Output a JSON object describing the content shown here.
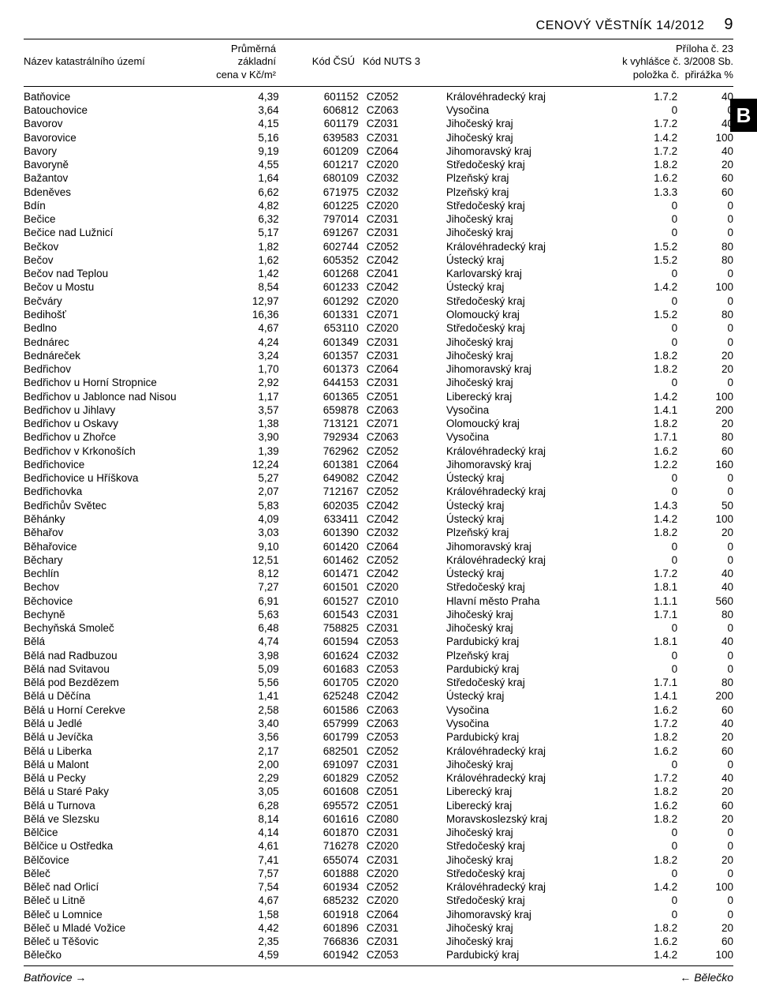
{
  "running_head": {
    "title": "CENOVÝ VĚSTNÍK 14/2012",
    "page_num": "9"
  },
  "side_tab": "B",
  "header": {
    "col1": "Název katastrálního území",
    "col2_l1": "Průměrná",
    "col2_l2": "základní",
    "col2_l3": "cena v Kč/m²",
    "col3": "Kód ČSÚ",
    "col4": "Kód NUTS 3",
    "right_l1": "Příloha č. 23",
    "right_l2": "k vyhlášce č. 3/2008 Sb.",
    "right_l3a": "položka č.",
    "right_l3b": "přirážka %"
  },
  "footer": {
    "left": "Batňovice",
    "right": "Bělečko"
  },
  "rows": [
    {
      "n": "Batňovice",
      "p": "4,39",
      "c": "601152",
      "u": "CZ052",
      "r": "Královéhradecký kraj",
      "l": "1.7.2",
      "s": "40"
    },
    {
      "n": "Batouchovice",
      "p": "3,64",
      "c": "606812",
      "u": "CZ063",
      "r": "Vysočina",
      "l": "0",
      "s": "0"
    },
    {
      "n": "Bavorov",
      "p": "4,15",
      "c": "601179",
      "u": "CZ031",
      "r": "Jihočeský kraj",
      "l": "1.7.2",
      "s": "40"
    },
    {
      "n": "Bavorovice",
      "p": "5,16",
      "c": "639583",
      "u": "CZ031",
      "r": "Jihočeský kraj",
      "l": "1.4.2",
      "s": "100"
    },
    {
      "n": "Bavory",
      "p": "9,19",
      "c": "601209",
      "u": "CZ064",
      "r": "Jihomoravský kraj",
      "l": "1.7.2",
      "s": "40"
    },
    {
      "n": "Bavoryně",
      "p": "4,55",
      "c": "601217",
      "u": "CZ020",
      "r": "Středočeský kraj",
      "l": "1.8.2",
      "s": "20"
    },
    {
      "n": "Bažantov",
      "p": "1,64",
      "c": "680109",
      "u": "CZ032",
      "r": "Plzeňský kraj",
      "l": "1.6.2",
      "s": "60"
    },
    {
      "n": "Bdeněves",
      "p": "6,62",
      "c": "671975",
      "u": "CZ032",
      "r": "Plzeňský kraj",
      "l": "1.3.3",
      "s": "60"
    },
    {
      "n": "Bdín",
      "p": "4,82",
      "c": "601225",
      "u": "CZ020",
      "r": "Středočeský kraj",
      "l": "0",
      "s": "0"
    },
    {
      "n": "Bečice",
      "p": "6,32",
      "c": "797014",
      "u": "CZ031",
      "r": "Jihočeský kraj",
      "l": "0",
      "s": "0"
    },
    {
      "n": "Bečice nad Lužnicí",
      "p": "5,17",
      "c": "691267",
      "u": "CZ031",
      "r": "Jihočeský kraj",
      "l": "0",
      "s": "0"
    },
    {
      "n": "Bečkov",
      "p": "1,82",
      "c": "602744",
      "u": "CZ052",
      "r": "Královéhradecký kraj",
      "l": "1.5.2",
      "s": "80"
    },
    {
      "n": "Bečov",
      "p": "1,62",
      "c": "605352",
      "u": "CZ042",
      "r": "Ústecký kraj",
      "l": "1.5.2",
      "s": "80"
    },
    {
      "n": "Bečov nad Teplou",
      "p": "1,42",
      "c": "601268",
      "u": "CZ041",
      "r": "Karlovarský kraj",
      "l": "0",
      "s": "0"
    },
    {
      "n": "Bečov u Mostu",
      "p": "8,54",
      "c": "601233",
      "u": "CZ042",
      "r": "Ústecký kraj",
      "l": "1.4.2",
      "s": "100"
    },
    {
      "n": "Bečváry",
      "p": "12,97",
      "c": "601292",
      "u": "CZ020",
      "r": "Středočeský kraj",
      "l": "0",
      "s": "0"
    },
    {
      "n": "Bedihošť",
      "p": "16,36",
      "c": "601331",
      "u": "CZ071",
      "r": "Olomoucký kraj",
      "l": "1.5.2",
      "s": "80"
    },
    {
      "n": "Bedlno",
      "p": "4,67",
      "c": "653110",
      "u": "CZ020",
      "r": "Středočeský kraj",
      "l": "0",
      "s": "0"
    },
    {
      "n": "Bednárec",
      "p": "4,24",
      "c": "601349",
      "u": "CZ031",
      "r": "Jihočeský kraj",
      "l": "0",
      "s": "0"
    },
    {
      "n": "Bednáreček",
      "p": "3,24",
      "c": "601357",
      "u": "CZ031",
      "r": "Jihočeský kraj",
      "l": "1.8.2",
      "s": "20"
    },
    {
      "n": "Bedřichov",
      "p": "1,70",
      "c": "601373",
      "u": "CZ064",
      "r": "Jihomoravský kraj",
      "l": "1.8.2",
      "s": "20"
    },
    {
      "n": "Bedřichov u Horní Stropnice",
      "p": "2,92",
      "c": "644153",
      "u": "CZ031",
      "r": "Jihočeský kraj",
      "l": "0",
      "s": "0"
    },
    {
      "n": "Bedřichov u Jablonce nad Nisou",
      "p": "1,17",
      "c": "601365",
      "u": "CZ051",
      "r": "Liberecký kraj",
      "l": "1.4.2",
      "s": "100"
    },
    {
      "n": "Bedřichov u Jihlavy",
      "p": "3,57",
      "c": "659878",
      "u": "CZ063",
      "r": "Vysočina",
      "l": "1.4.1",
      "s": "200"
    },
    {
      "n": "Bedřichov u Oskavy",
      "p": "1,38",
      "c": "713121",
      "u": "CZ071",
      "r": "Olomoucký kraj",
      "l": "1.8.2",
      "s": "20"
    },
    {
      "n": "Bedřichov u Zhořce",
      "p": "3,90",
      "c": "792934",
      "u": "CZ063",
      "r": "Vysočina",
      "l": "1.7.1",
      "s": "80"
    },
    {
      "n": "Bedřichov v Krkonoších",
      "p": "1,39",
      "c": "762962",
      "u": "CZ052",
      "r": "Královéhradecký kraj",
      "l": "1.6.2",
      "s": "60"
    },
    {
      "n": "Bedřichovice",
      "p": "12,24",
      "c": "601381",
      "u": "CZ064",
      "r": "Jihomoravský kraj",
      "l": "1.2.2",
      "s": "160"
    },
    {
      "n": "Bedřichovice u Hříškova",
      "p": "5,27",
      "c": "649082",
      "u": "CZ042",
      "r": "Ústecký kraj",
      "l": "0",
      "s": "0"
    },
    {
      "n": "Bedřichovka",
      "p": "2,07",
      "c": "712167",
      "u": "CZ052",
      "r": "Královéhradecký kraj",
      "l": "0",
      "s": "0"
    },
    {
      "n": "Bedřichův Světec",
      "p": "5,83",
      "c": "602035",
      "u": "CZ042",
      "r": "Ústecký kraj",
      "l": "1.4.3",
      "s": "50"
    },
    {
      "n": "Běhánky",
      "p": "4,09",
      "c": "633411",
      "u": "CZ042",
      "r": "Ústecký kraj",
      "l": "1.4.2",
      "s": "100"
    },
    {
      "n": "Běhařov",
      "p": "3,03",
      "c": "601390",
      "u": "CZ032",
      "r": "Plzeňský kraj",
      "l": "1.8.2",
      "s": "20"
    },
    {
      "n": "Běhařovice",
      "p": "9,10",
      "c": "601420",
      "u": "CZ064",
      "r": "Jihomoravský kraj",
      "l": "0",
      "s": "0"
    },
    {
      "n": "Běchary",
      "p": "12,51",
      "c": "601462",
      "u": "CZ052",
      "r": "Královéhradecký kraj",
      "l": "0",
      "s": "0"
    },
    {
      "n": "Bechlín",
      "p": "8,12",
      "c": "601471",
      "u": "CZ042",
      "r": "Ústecký kraj",
      "l": "1.7.2",
      "s": "40"
    },
    {
      "n": "Bechov",
      "p": "7,27",
      "c": "601501",
      "u": "CZ020",
      "r": "Středočeský kraj",
      "l": "1.8.1",
      "s": "40"
    },
    {
      "n": "Běchovice",
      "p": "6,91",
      "c": "601527",
      "u": "CZ010",
      "r": "Hlavní město Praha",
      "l": "1.1.1",
      "s": "560"
    },
    {
      "n": "Bechyně",
      "p": "5,63",
      "c": "601543",
      "u": "CZ031",
      "r": "Jihočeský kraj",
      "l": "1.7.1",
      "s": "80"
    },
    {
      "n": "Bechyňská Smoleč",
      "p": "6,48",
      "c": "758825",
      "u": "CZ031",
      "r": "Jihočeský kraj",
      "l": "0",
      "s": "0"
    },
    {
      "n": "Bělá",
      "p": "4,74",
      "c": "601594",
      "u": "CZ053",
      "r": "Pardubický kraj",
      "l": "1.8.1",
      "s": "40"
    },
    {
      "n": "Bělá nad Radbuzou",
      "p": "3,98",
      "c": "601624",
      "u": "CZ032",
      "r": "Plzeňský kraj",
      "l": "0",
      "s": "0"
    },
    {
      "n": "Bělá nad Svitavou",
      "p": "5,09",
      "c": "601683",
      "u": "CZ053",
      "r": "Pardubický kraj",
      "l": "0",
      "s": "0"
    },
    {
      "n": "Bělá pod Bezdězem",
      "p": "5,56",
      "c": "601705",
      "u": "CZ020",
      "r": "Středočeský kraj",
      "l": "1.7.1",
      "s": "80"
    },
    {
      "n": "Bělá u Děčína",
      "p": "1,41",
      "c": "625248",
      "u": "CZ042",
      "r": "Ústecký kraj",
      "l": "1.4.1",
      "s": "200"
    },
    {
      "n": "Bělá u Horní Cerekve",
      "p": "2,58",
      "c": "601586",
      "u": "CZ063",
      "r": "Vysočina",
      "l": "1.6.2",
      "s": "60"
    },
    {
      "n": "Bělá u Jedlé",
      "p": "3,40",
      "c": "657999",
      "u": "CZ063",
      "r": "Vysočina",
      "l": "1.7.2",
      "s": "40"
    },
    {
      "n": "Bělá u Jevíčka",
      "p": "3,56",
      "c": "601799",
      "u": "CZ053",
      "r": "Pardubický kraj",
      "l": "1.8.2",
      "s": "20"
    },
    {
      "n": "Bělá u Liberka",
      "p": "2,17",
      "c": "682501",
      "u": "CZ052",
      "r": "Královéhradecký kraj",
      "l": "1.6.2",
      "s": "60"
    },
    {
      "n": "Bělá u Malont",
      "p": "2,00",
      "c": "691097",
      "u": "CZ031",
      "r": "Jihočeský kraj",
      "l": "0",
      "s": "0"
    },
    {
      "n": "Bělá u Pecky",
      "p": "2,29",
      "c": "601829",
      "u": "CZ052",
      "r": "Královéhradecký kraj",
      "l": "1.7.2",
      "s": "40"
    },
    {
      "n": "Bělá u Staré Paky",
      "p": "3,05",
      "c": "601608",
      "u": "CZ051",
      "r": "Liberecký kraj",
      "l": "1.8.2",
      "s": "20"
    },
    {
      "n": "Bělá u Turnova",
      "p": "6,28",
      "c": "695572",
      "u": "CZ051",
      "r": "Liberecký kraj",
      "l": "1.6.2",
      "s": "60"
    },
    {
      "n": "Bělá ve Slezsku",
      "p": "8,14",
      "c": "601616",
      "u": "CZ080",
      "r": "Moravskoslezský kraj",
      "l": "1.8.2",
      "s": "20"
    },
    {
      "n": "Bělčice",
      "p": "4,14",
      "c": "601870",
      "u": "CZ031",
      "r": "Jihočeský kraj",
      "l": "0",
      "s": "0"
    },
    {
      "n": "Bělčice u Ostředka",
      "p": "4,61",
      "c": "716278",
      "u": "CZ020",
      "r": "Středočeský kraj",
      "l": "0",
      "s": "0"
    },
    {
      "n": "Bělčovice",
      "p": "7,41",
      "c": "655074",
      "u": "CZ031",
      "r": "Jihočeský kraj",
      "l": "1.8.2",
      "s": "20"
    },
    {
      "n": "Běleč",
      "p": "7,57",
      "c": "601888",
      "u": "CZ020",
      "r": "Středočeský kraj",
      "l": "0",
      "s": "0"
    },
    {
      "n": "Běleč nad Orlicí",
      "p": "7,54",
      "c": "601934",
      "u": "CZ052",
      "r": "Královéhradecký kraj",
      "l": "1.4.2",
      "s": "100"
    },
    {
      "n": "Běleč u Litně",
      "p": "4,67",
      "c": "685232",
      "u": "CZ020",
      "r": "Středočeský kraj",
      "l": "0",
      "s": "0"
    },
    {
      "n": "Běleč u Lomnice",
      "p": "1,58",
      "c": "601918",
      "u": "CZ064",
      "r": "Jihomoravský kraj",
      "l": "0",
      "s": "0"
    },
    {
      "n": "Běleč u Mladé Vožice",
      "p": "4,42",
      "c": "601896",
      "u": "CZ031",
      "r": "Jihočeský kraj",
      "l": "1.8.2",
      "s": "20"
    },
    {
      "n": "Běleč u Těšovic",
      "p": "2,35",
      "c": "766836",
      "u": "CZ031",
      "r": "Jihočeský kraj",
      "l": "1.6.2",
      "s": "60"
    },
    {
      "n": "Bělečko",
      "p": "4,59",
      "c": "601942",
      "u": "CZ053",
      "r": "Pardubický kraj",
      "l": "1.4.2",
      "s": "100"
    }
  ]
}
